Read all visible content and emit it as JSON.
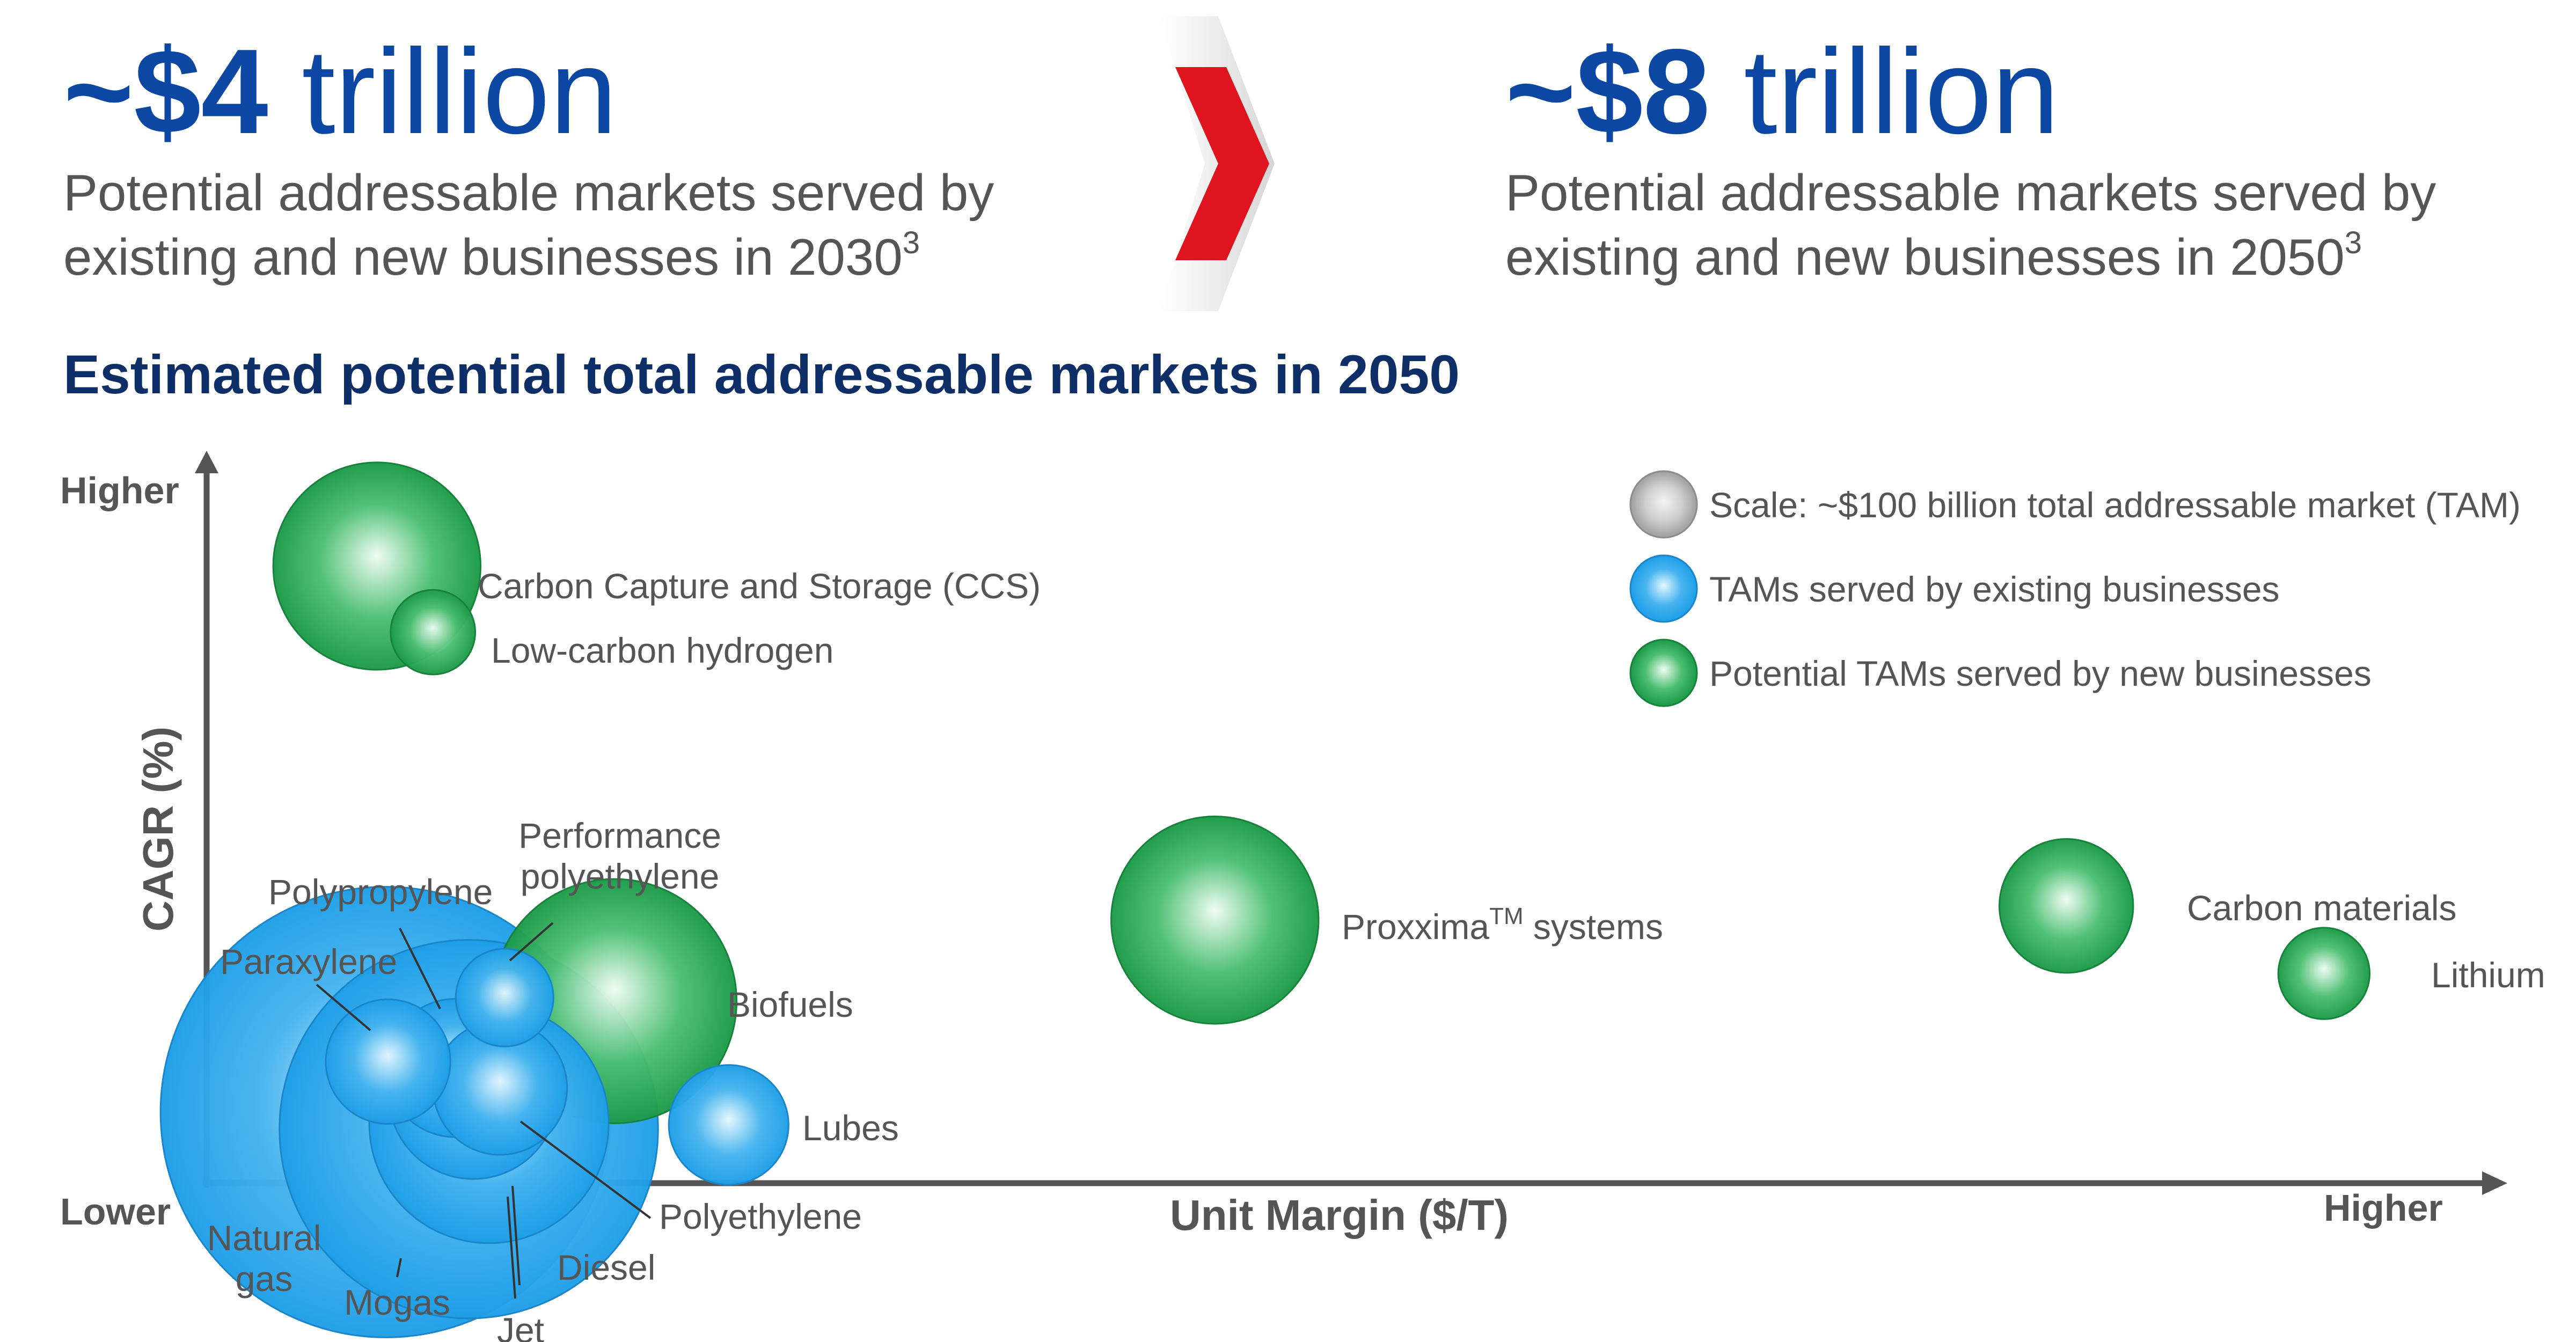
{
  "header": {
    "left": {
      "amount": "~$4",
      "unit": "trillion",
      "line1": "Potential addressable markets served by",
      "line2": "existing and new businesses in 2030",
      "footnote": "3"
    },
    "right": {
      "amount": "~$8",
      "unit": "trillion",
      "line1": "Potential addressable markets served by",
      "line2": "existing and new businesses in 2050",
      "footnote": "3"
    }
  },
  "colors": {
    "navy": "#0c47a3",
    "chevron_red": "#e0141e",
    "existing_blue": "#1e9ee8",
    "new_green": "#1c9a48",
    "scale_gray": "#b3b3b3",
    "axis_gray": "#555555"
  },
  "chart_data": {
    "type": "scatter",
    "title": "Estimated potential total addressable markets in 2050",
    "xlabel": "Unit Margin ($/T)",
    "ylabel": "CAGR (%)",
    "x_tick_high": "Higher",
    "y_tick_high": "Higher",
    "origin_label": "Lower",
    "xlim": [
      0,
      100
    ],
    "ylim": [
      0,
      100
    ],
    "legend_position": "top-right",
    "legend": [
      {
        "label": "Scale: ~$100 billion total addressable market (TAM)",
        "kind": "scale"
      },
      {
        "label": "TAMs served by existing businesses",
        "kind": "existing"
      },
      {
        "label": "Potential TAMs served by new businesses",
        "kind": "new"
      }
    ],
    "bubbles": [
      {
        "label": "Carbon Capture and Storage (CCS)",
        "kind": "new",
        "x": 7.6,
        "y": 86.8,
        "tam": 180
      },
      {
        "label": "Low-carbon hydrogen",
        "kind": "new",
        "x": 10.1,
        "y": 77.5,
        "tam": 30
      },
      {
        "label": "Proxxima",
        "label_sup": "TM",
        "label_tail": " systems",
        "kind": "new",
        "x": 45.0,
        "y": 37.0,
        "tam": 180
      },
      {
        "label": "Carbon materials",
        "kind": "new",
        "x": 83.0,
        "y": 39.0,
        "tam": 75
      },
      {
        "label": "Lithium",
        "kind": "new",
        "x": 94.5,
        "y": 29.5,
        "tam": 35
      },
      {
        "label": "Biofuels",
        "kind": "new",
        "x": 18.2,
        "y": 25.6,
        "tam": 250
      },
      {
        "label": "Lubes",
        "kind": "existing",
        "x": 23.3,
        "y": 8.2,
        "tam": 60
      },
      {
        "label": "Natural gas",
        "kind": "existing",
        "x": 8.0,
        "y": 10.0,
        "tam": 850
      },
      {
        "label": "Mogas",
        "kind": "existing",
        "x": 11.7,
        "y": 7.6,
        "tam": 600
      },
      {
        "label": "Diesel",
        "kind": "existing",
        "x": 12.6,
        "y": 8.4,
        "tam": 240
      },
      {
        "label": "Jet",
        "kind": "existing",
        "x": 11.9,
        "y": 12.5,
        "tam": 120
      },
      {
        "label": "Polyethylene",
        "kind": "existing",
        "x": 13.1,
        "y": 13.4,
        "tam": 75
      },
      {
        "label": "Polypropylene",
        "kind": "existing",
        "x": 11.1,
        "y": 16.2,
        "tam": 80
      },
      {
        "label": "Paraxylene",
        "kind": "existing",
        "x": 8.1,
        "y": 17.1,
        "tam": 65
      },
      {
        "label": "Performance polyethylene",
        "kind": "existing",
        "x": 13.3,
        "y": 26.1,
        "tam": 40
      }
    ]
  }
}
